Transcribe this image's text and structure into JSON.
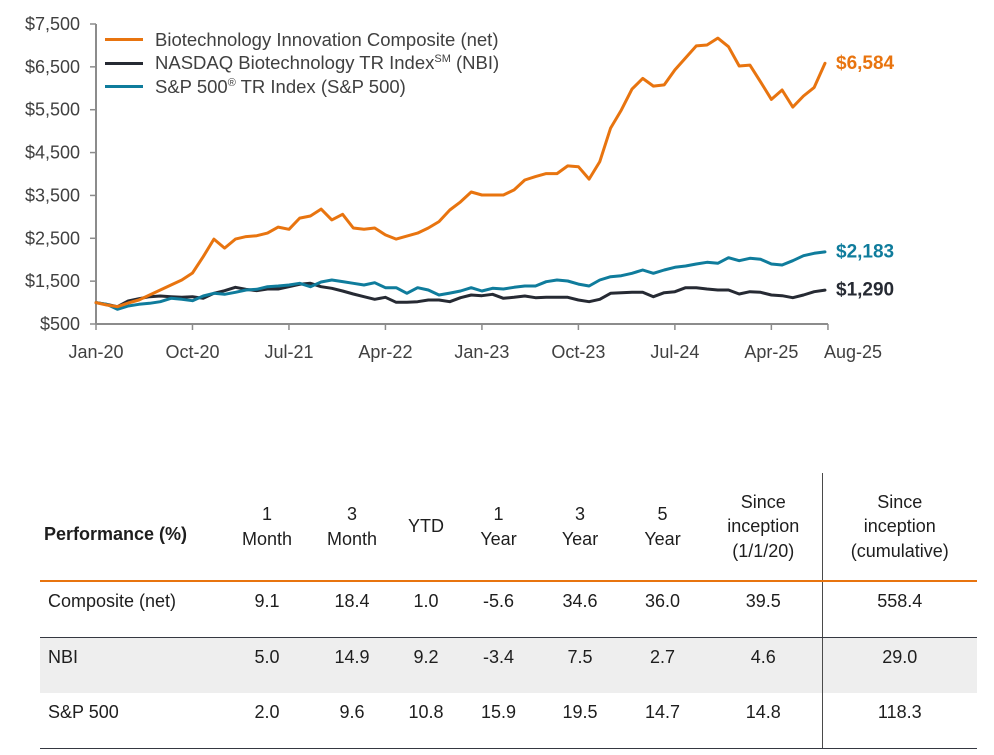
{
  "chart_data": {
    "type": "line",
    "title": "",
    "xlabel": "",
    "ylabel": "",
    "x_frequency": "monthly",
    "x_start": "Jan-20",
    "x_end": "Aug-25",
    "ylim": [
      500,
      7500
    ],
    "grid": false,
    "legend_placement": "top-left",
    "yticks": [
      {
        "value": 500,
        "label": "$500"
      },
      {
        "value": 1500,
        "label": "$1,500"
      },
      {
        "value": 2500,
        "label": "$2,500"
      },
      {
        "value": 3500,
        "label": "$3,500"
      },
      {
        "value": 4500,
        "label": "$4,500"
      },
      {
        "value": 5500,
        "label": "$5,500"
      },
      {
        "value": 6500,
        "label": "$6,500"
      },
      {
        "value": 7500,
        "label": "$7,500"
      }
    ],
    "xticks": [
      {
        "month_index": 0,
        "label": "Jan-20"
      },
      {
        "month_index": 9,
        "label": "Oct-20"
      },
      {
        "month_index": 18,
        "label": "Jul-21"
      },
      {
        "month_index": 27,
        "label": "Apr-22"
      },
      {
        "month_index": 36,
        "label": "Jan-23"
      },
      {
        "month_index": 45,
        "label": "Oct-23"
      },
      {
        "month_index": 54,
        "label": "Jul-24"
      },
      {
        "month_index": 63,
        "label": "Apr-25"
      },
      {
        "month_index": 68,
        "label": "Aug-25"
      }
    ],
    "series": [
      {
        "key": "nbi",
        "name": "NASDAQ Biotechnology TR Index SM (NBI)",
        "color": "#262A33",
        "end_label": "$1,290",
        "values": [
          1000,
          960,
          904,
          1037,
          1090,
          1137,
          1153,
          1137,
          1123,
          1137,
          1100,
          1216,
          1277,
          1356,
          1310,
          1277,
          1317,
          1317,
          1370,
          1426,
          1450,
          1370,
          1333,
          1270,
          1200,
          1137,
          1077,
          1123,
          1007,
          1007,
          1020,
          1060,
          1060,
          1020,
          1113,
          1177,
          1160,
          1193,
          1100,
          1123,
          1153,
          1113,
          1123,
          1123,
          1123,
          1060,
          1020,
          1077,
          1216,
          1230,
          1240,
          1240,
          1137,
          1230,
          1253,
          1347,
          1347,
          1317,
          1293,
          1293,
          1200,
          1253,
          1240,
          1177,
          1160,
          1113,
          1177,
          1253,
          1290
        ]
      },
      {
        "key": "sp500",
        "name": "S&P 500® TR Index (S&P 500)",
        "color": "#0F7C9C",
        "end_label": "$2,183",
        "values": [
          1000,
          960,
          843,
          920,
          960,
          983,
          1020,
          1100,
          1077,
          1043,
          1153,
          1216,
          1193,
          1240,
          1293,
          1310,
          1370,
          1387,
          1410,
          1450,
          1370,
          1480,
          1527,
          1490,
          1450,
          1410,
          1463,
          1347,
          1347,
          1217,
          1347,
          1293,
          1177,
          1220,
          1270,
          1347,
          1270,
          1333,
          1317,
          1356,
          1387,
          1387,
          1487,
          1527,
          1503,
          1430,
          1387,
          1527,
          1603,
          1627,
          1683,
          1760,
          1683,
          1760,
          1823,
          1853,
          1900,
          1940,
          1917,
          2047,
          1977,
          2033,
          2010,
          1900,
          1877,
          1977,
          2093,
          2150,
          2183
        ]
      },
      {
        "key": "composite",
        "name": "Biotechnology Innovation Composite (net)",
        "color": "#E8740F",
        "end_label": "$6,584",
        "values": [
          1000,
          943,
          904,
          990,
          1060,
          1177,
          1293,
          1410,
          1527,
          1690,
          2070,
          2480,
          2270,
          2480,
          2540,
          2560,
          2620,
          2760,
          2710,
          2970,
          3020,
          3180,
          2930,
          3060,
          2740,
          2710,
          2740,
          2580,
          2480,
          2550,
          2620,
          2740,
          2890,
          3160,
          3350,
          3580,
          3510,
          3510,
          3510,
          3630,
          3860,
          3940,
          4010,
          4010,
          4190,
          4170,
          3880,
          4290,
          5070,
          5490,
          5980,
          6230,
          6050,
          6080,
          6430,
          6710,
          6990,
          7010,
          7170,
          6970,
          6520,
          6540,
          6150,
          5740,
          5960,
          5560,
          5820,
          6020,
          6584
        ]
      }
    ]
  },
  "legend": [
    {
      "text": "Biotechnology Innovation Composite (net)",
      "sup": "",
      "suffix": "",
      "color": "#E8740F"
    },
    {
      "text": "NASDAQ Biotechnology TR Index",
      "sup": "SM",
      "suffix": " (NBI)",
      "color": "#262A33"
    },
    {
      "text": "S&P 500",
      "sup": "®",
      "suffix": " TR Index (S&P 500)",
      "color": "#0F7C9C"
    }
  ],
  "table": {
    "headers": [
      "Performance (%)",
      "1\nMonth",
      "3\nMonth",
      "YTD",
      "1\nYear",
      "3\nYear",
      "5\nYear",
      "Since\ninception\n(1/1/20)",
      "Since\ninception\n(cumulative)"
    ],
    "rows": [
      {
        "label": "Composite (net)",
        "values": [
          "9.1",
          "18.4",
          "1.0",
          "-5.6",
          "34.6",
          "36.0",
          "39.5",
          "558.4"
        ]
      },
      {
        "label": "NBI",
        "values": [
          "5.0",
          "14.9",
          "9.2",
          "-3.4",
          "7.5",
          "2.7",
          "4.6",
          "29.0"
        ]
      },
      {
        "label": "S&P 500",
        "values": [
          "2.0",
          "9.6",
          "10.8",
          "15.9",
          "19.5",
          "14.7",
          "14.8",
          "118.3"
        ]
      }
    ]
  }
}
